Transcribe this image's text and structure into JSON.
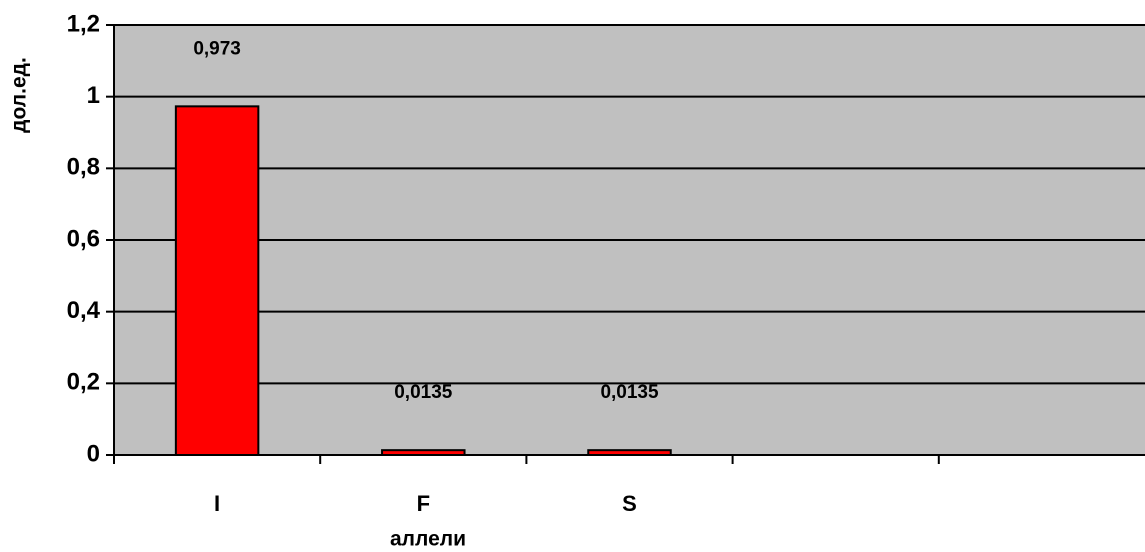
{
  "chart_data": {
    "type": "bar",
    "x_label": "аллели",
    "y_label": "дол.ед.",
    "categories": [
      "I",
      "F",
      "S",
      null,
      null
    ],
    "values": [
      0.973,
      0.0135,
      0.0135,
      null,
      null
    ],
    "value_labels": [
      "0,973",
      "0,0135",
      "0,0135",
      null,
      null
    ],
    "color": "#ff0000",
    "ylim": [
      0,
      1.2
    ],
    "yticks": [
      0,
      {
        "value": 0.2,
        "label": "0,2"
      },
      {
        "value": 0.4,
        "label": "0,4"
      },
      {
        "value": 0.6,
        "label": "0,6"
      },
      {
        "value": 0.8,
        "label": "0,8"
      },
      1,
      {
        "value": 1.2,
        "label": "1,2"
      }
    ],
    "grid": true,
    "background": "#c0c0c0"
  }
}
